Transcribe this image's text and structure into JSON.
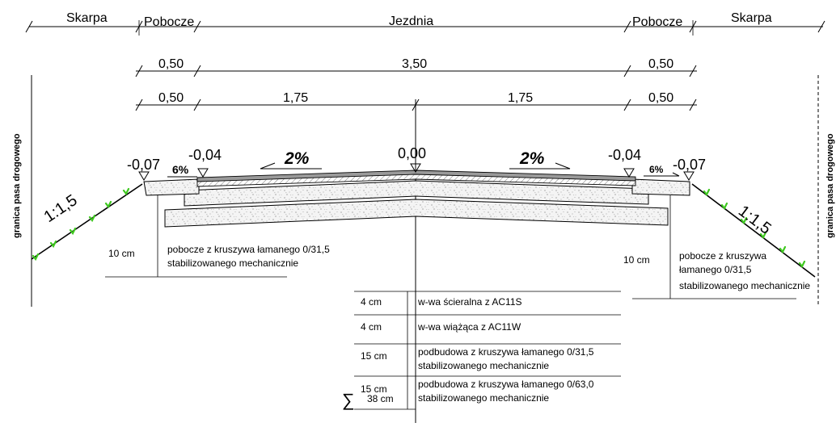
{
  "zones": {
    "skarpa_left": "Skarpa",
    "pobocze_left": "Pobocze",
    "jezdnia": "Jezdnia",
    "pobocze_right": "Pobocze",
    "skarpa_right": "Skarpa"
  },
  "dims_row1": {
    "left": "0,50",
    "middle": "3,50",
    "right": "0,50"
  },
  "dims_row2": {
    "left": "0,50",
    "mid_left": "1,75",
    "mid_right": "1,75",
    "right": "0,50"
  },
  "elevations": {
    "left_outer": "-0,07",
    "left_inner": "-0,04",
    "center": "0,00",
    "right_inner": "-0,04",
    "right_outer": "-0,07"
  },
  "slopes": {
    "shoulder_left": "6%",
    "carriageway_left": "2%",
    "carriageway_right": "2%",
    "shoulder_right": "6%",
    "embankment_left": "1:1,5",
    "embankment_right": "1:1,5"
  },
  "boundary_label": "granica pasa drogowego",
  "shoulder_note_left": {
    "thickness": "10 cm",
    "line1": "pobocze z kruszywa łamanego 0/31,5",
    "line2": "stabilizowanego mechanicznie"
  },
  "shoulder_note_right": {
    "thickness": "10 cm",
    "line1": "pobocze z kruszywa",
    "line2": "łamanego 0/31,5",
    "line3": "stabilizowanego mechanicznie"
  },
  "layers": [
    {
      "thickness": "4 cm",
      "line1": "w-wa ścieralna z AC11S",
      "line2": ""
    },
    {
      "thickness": "4 cm",
      "line1": "w-wa wiążąca z AC11W",
      "line2": ""
    },
    {
      "thickness": "15 cm",
      "line1": "podbudowa z kruszywa łamanego 0/31,5",
      "line2": "stabilizowanego mechanicznie"
    },
    {
      "thickness": "15 cm",
      "line1": "podbudowa z kruszywa łamanego 0/63,0",
      "line2": "stabilizowanego mechanicznie"
    }
  ],
  "total": {
    "symbol": "∑",
    "value": "38 cm"
  }
}
